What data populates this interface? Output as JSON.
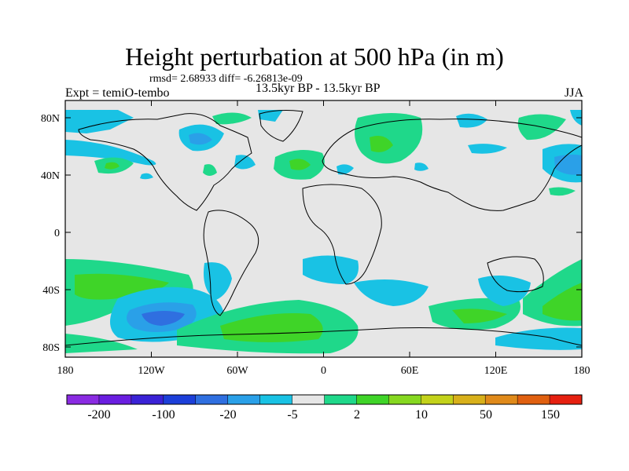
{
  "title": "Height perturbation at 500 hPa (in m)",
  "stats": "rmsd= 2.68933 diff= -6.26813e-09",
  "experiment": "Expt = temiO-tembo",
  "period": "13.5kyr BP - 13.5kyr BP",
  "season": "JJA",
  "axes": {
    "lat_labels": [
      "80N",
      "40N",
      "0",
      "40S",
      "80S"
    ],
    "lon_labels": [
      "180",
      "120W",
      "60W",
      "0",
      "60E",
      "120E",
      "180"
    ]
  },
  "colorbar": {
    "colors": [
      "#8a2be2",
      "#6a1ee0",
      "#3a22d6",
      "#1c3fd9",
      "#2f6fe0",
      "#2aa0e8",
      "#19c2e4",
      "#e6e6e6",
      "#1fd88a",
      "#3fd428",
      "#86d820",
      "#c3d21a",
      "#d8b01a",
      "#e08a1a",
      "#e06010",
      "#e62010"
    ],
    "labels": [
      "-200",
      "-100",
      "-20",
      "-5",
      "2",
      "10",
      "50",
      "150"
    ]
  },
  "palette": {
    "ocean_background": "#e6e6e6",
    "light_blue": "#19c2e4",
    "mid_blue": "#2aa0e8",
    "dark_blue": "#2f6fe0",
    "deep_blue": "#1c3fd9",
    "teal_green": "#1fd88a",
    "green": "#3fd428"
  }
}
